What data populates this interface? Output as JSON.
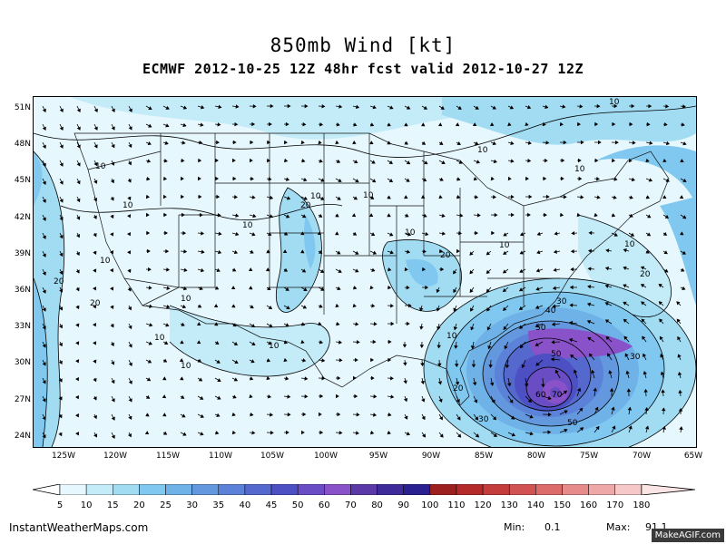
{
  "header": {
    "title": "850mb Wind [kt]",
    "subtitle": "ECMWF 2012-10-25 12Z 48hr fcst valid 2012-10-27 12Z"
  },
  "axes": {
    "lat_labels": [
      "51N",
      "48N",
      "45N",
      "42N",
      "39N",
      "36N",
      "33N",
      "30N",
      "27N",
      "24N"
    ],
    "lon_labels": [
      "125W",
      "120W",
      "115W",
      "110W",
      "105W",
      "100W",
      "95W",
      "90W",
      "85W",
      "80W",
      "75W",
      "70W",
      "65W"
    ],
    "bottom_lon_labels_as_printed": [
      "125W",
      "120W",
      "115W",
      "110W",
      "105W",
      "100W",
      "95W",
      "90W",
      "85W",
      "80W",
      "75W",
      "70W",
      "65W"
    ]
  },
  "colorbar": {
    "levels": [
      "5",
      "10",
      "15",
      "20",
      "25",
      "30",
      "35",
      "40",
      "45",
      "50",
      "60",
      "70",
      "80",
      "90",
      "100",
      "110",
      "120",
      "130",
      "140",
      "150",
      "160",
      "170",
      "180"
    ],
    "colors": [
      "#ffffff",
      "#e6f7fd",
      "#c4ecf8",
      "#a2dcf3",
      "#80c8ef",
      "#6fb2e8",
      "#6398df",
      "#5b82d8",
      "#5468cd",
      "#4c50c2",
      "#6a4cc4",
      "#8a52c9",
      "#5b3aa8",
      "#3f2a9a",
      "#2a2090",
      "#9c2020",
      "#b42a2a",
      "#c43c3c",
      "#d05252",
      "#dc6c6c",
      "#e68a8a",
      "#efa8a8",
      "#f6c8c8",
      "#fbe4e4"
    ],
    "units": "kt"
  },
  "contour_labels": [
    {
      "text": "10"
    },
    {
      "text": "10"
    },
    {
      "text": "10"
    },
    {
      "text": "10"
    },
    {
      "text": "20"
    },
    {
      "text": "10"
    },
    {
      "text": "10"
    },
    {
      "text": "10"
    },
    {
      "text": "20"
    },
    {
      "text": "10"
    },
    {
      "text": "20"
    },
    {
      "text": "10"
    },
    {
      "text": "10"
    },
    {
      "text": "10"
    },
    {
      "text": "20"
    },
    {
      "text": "10"
    },
    {
      "text": "20"
    },
    {
      "text": "30"
    },
    {
      "text": "40"
    },
    {
      "text": "50"
    },
    {
      "text": "50"
    },
    {
      "text": "60"
    },
    {
      "text": "70"
    },
    {
      "text": "50"
    },
    {
      "text": "30"
    },
    {
      "text": "30"
    },
    {
      "text": "20"
    },
    {
      "text": "10"
    },
    {
      "text": "10"
    },
    {
      "text": "10"
    },
    {
      "text": "10"
    },
    {
      "text": "10"
    }
  ],
  "footer": {
    "site": "InstantWeatherMaps.com",
    "min_label": "Min:",
    "min_value": "0.1",
    "max_label": "Max:",
    "max_value": "91.1",
    "watermark": "MakeAGIF.com"
  },
  "wind_field": {
    "model": "ECMWF",
    "level": "850mb",
    "units": "kt",
    "min": 0.1,
    "max": 91.1
  }
}
